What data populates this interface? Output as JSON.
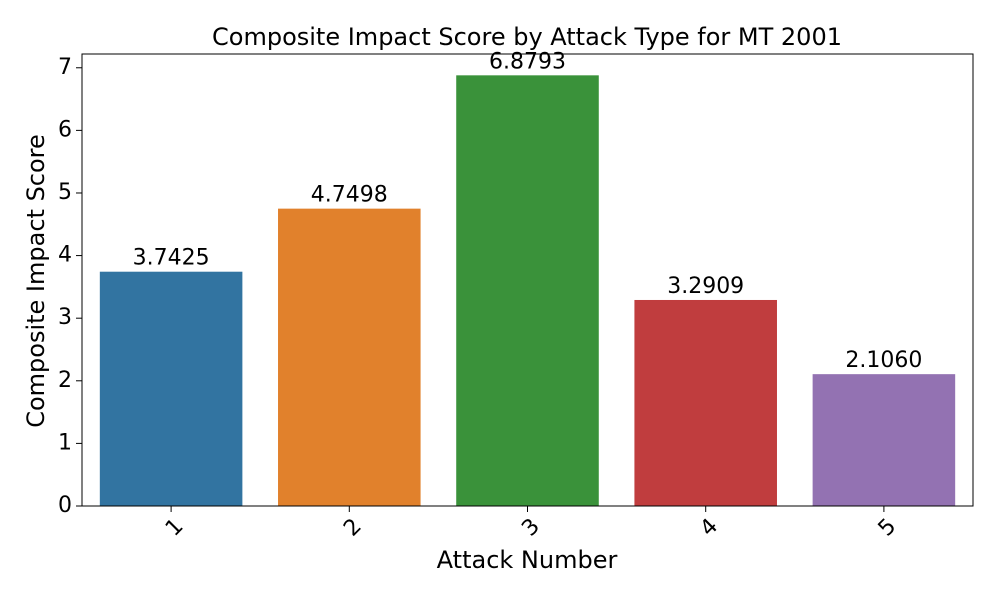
{
  "chart_data": {
    "type": "bar",
    "title": "Composite Impact Score by Attack Type for MT 2001",
    "xlabel": "Attack Number",
    "ylabel": "Composite Impact Score",
    "categories": [
      "1",
      "2",
      "3",
      "4",
      "5"
    ],
    "values": [
      3.7425,
      4.7498,
      6.8793,
      3.2909,
      2.106
    ],
    "value_labels": [
      "3.7425",
      "4.7498",
      "6.8793",
      "3.2909",
      "2.1060"
    ],
    "colors": [
      "#3274a1",
      "#e1812c",
      "#3a923a",
      "#c03d3e",
      "#9372b2"
    ],
    "ylim": [
      0,
      7.22
    ],
    "yticks": [
      0,
      1,
      2,
      3,
      4,
      5,
      6,
      7
    ],
    "ytick_labels": [
      "0",
      "1",
      "2",
      "3",
      "4",
      "5",
      "6",
      "7"
    ],
    "xtick_rotation": -45,
    "grid": false,
    "legend": "none"
  }
}
